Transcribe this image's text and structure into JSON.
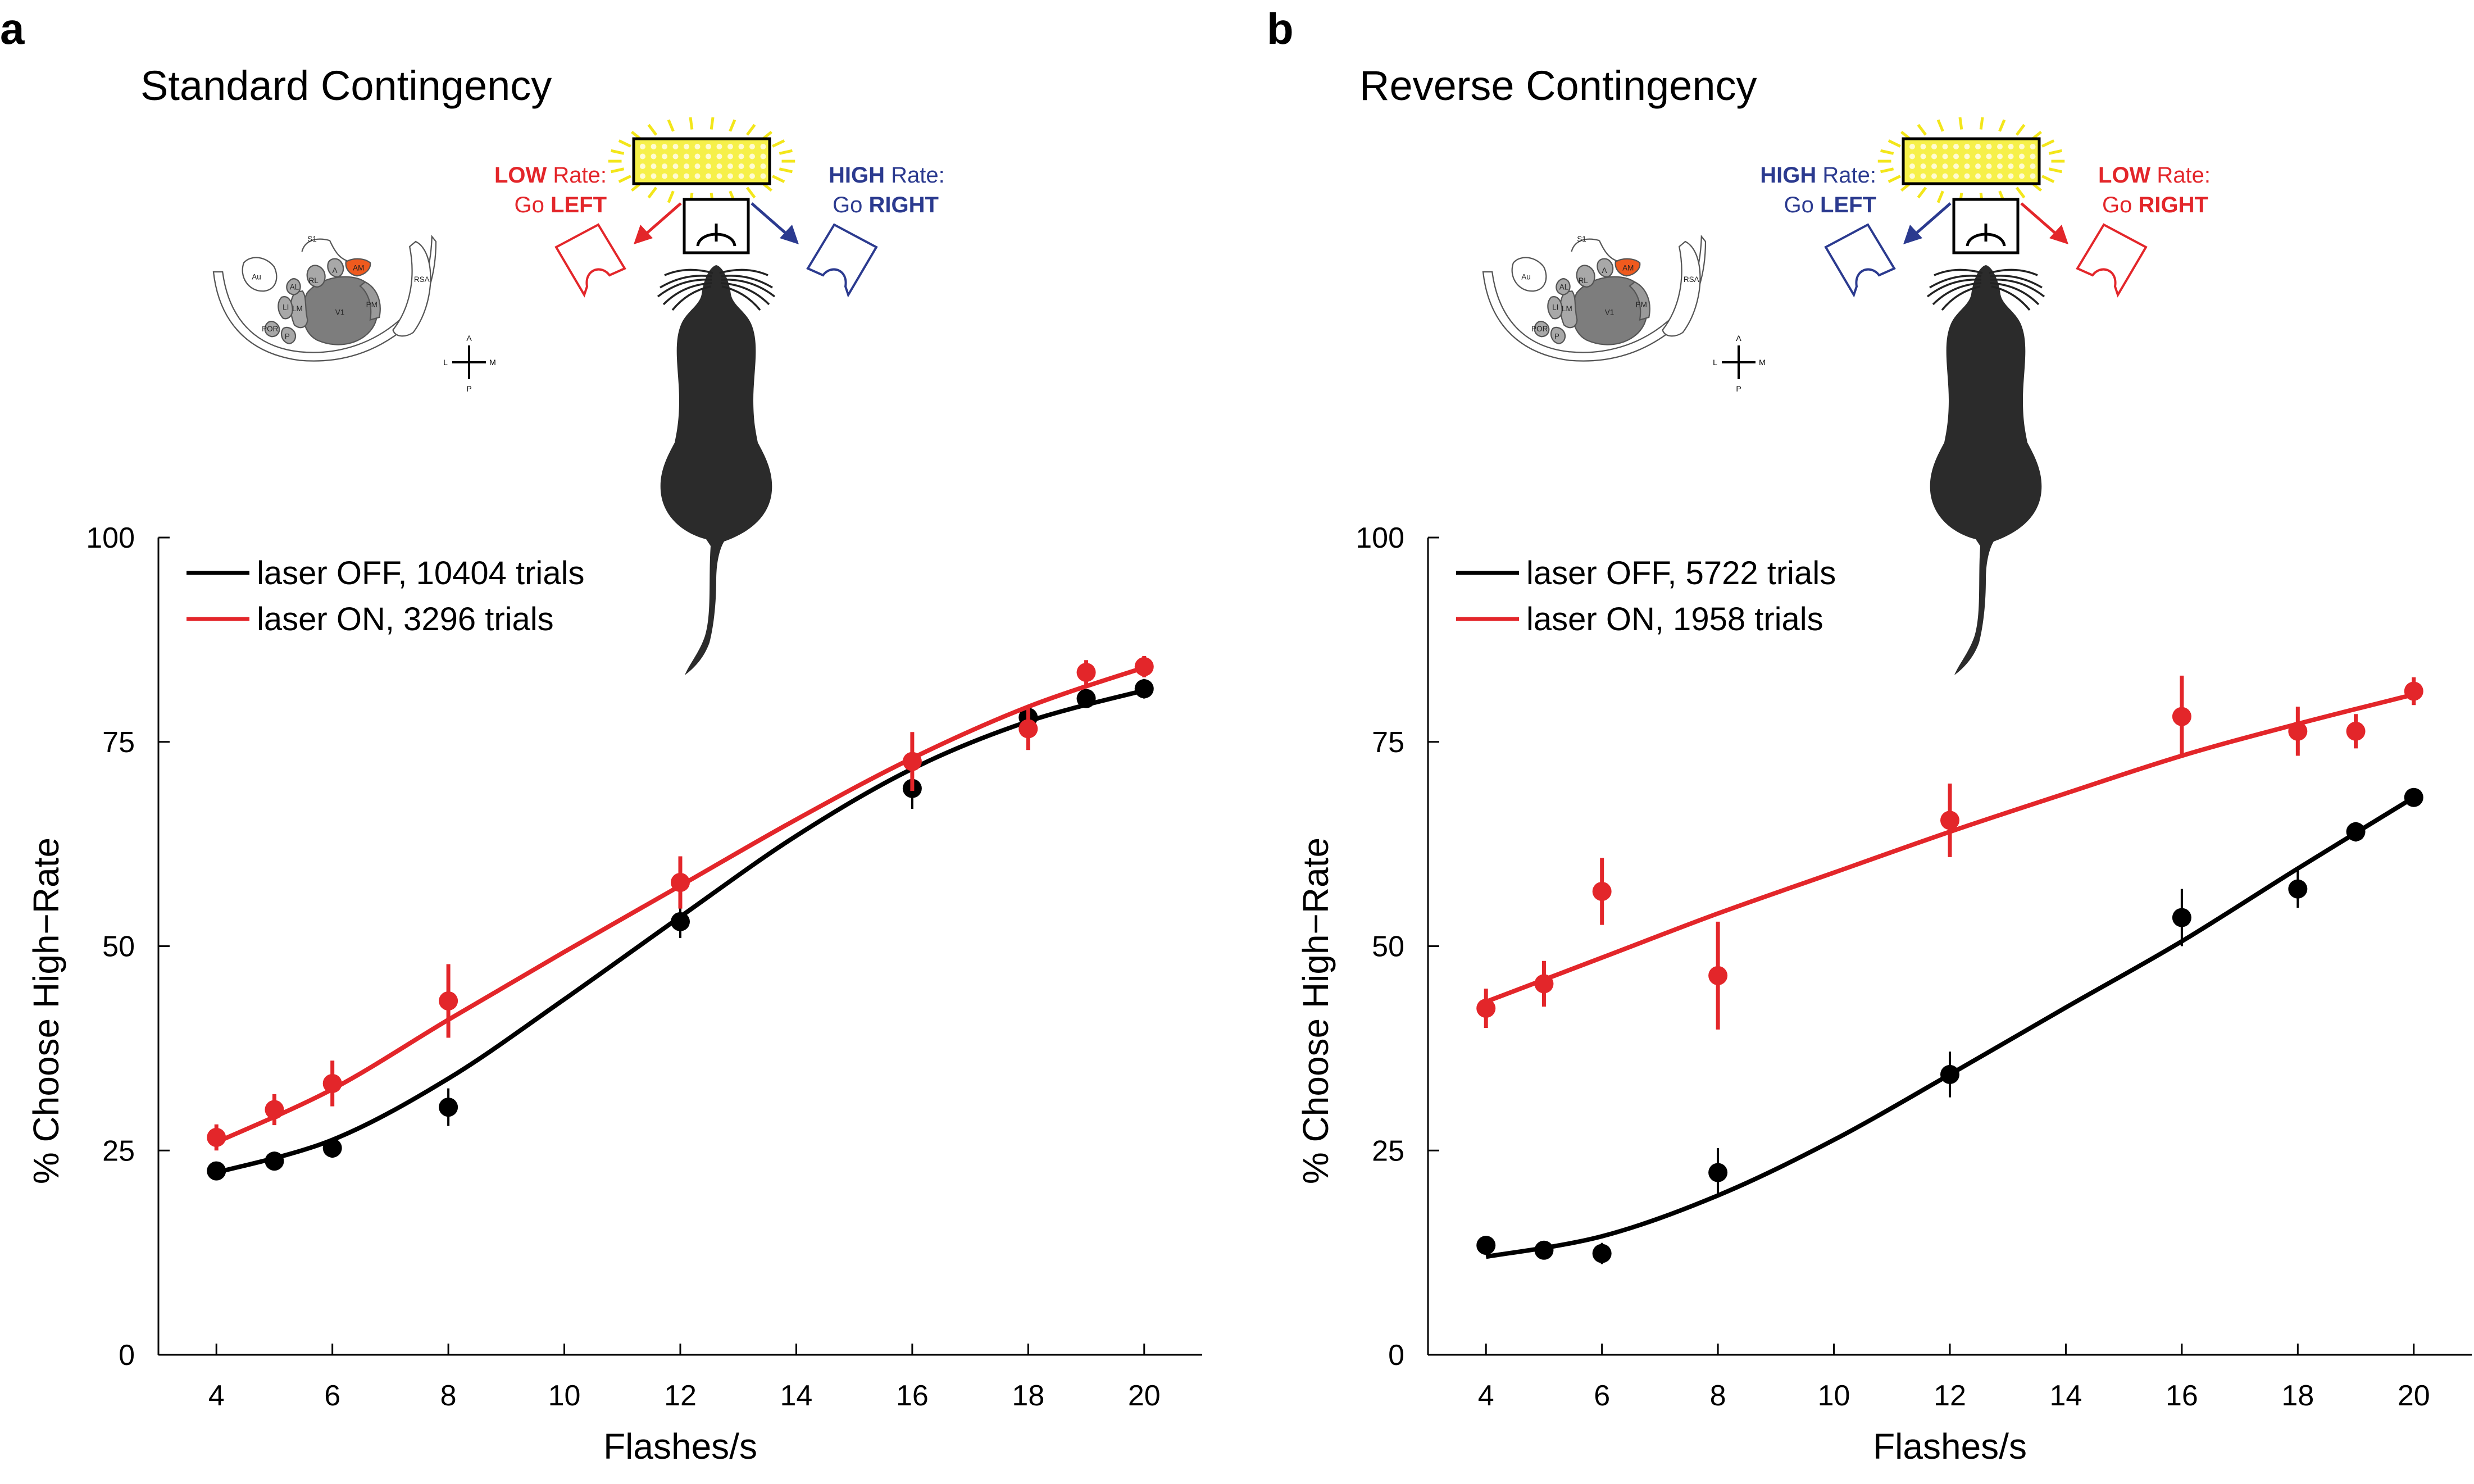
{
  "panels": [
    {
      "letter": "a",
      "title": "Standard Contingency",
      "diagram": {
        "left_label_bold": "LOW",
        "left_label_rest": " Rate:",
        "left_action_pre": "Go ",
        "left_action_bold": "LEFT",
        "left_color": "#e3262a",
        "right_label_bold": "HIGH",
        "right_label_rest": " Rate:",
        "right_action_pre": "Go ",
        "right_action_bold": "RIGHT",
        "right_color": "#2b3a8f"
      }
    },
    {
      "letter": "b",
      "title": "Reverse Contingency",
      "diagram": {
        "left_label_bold": "HIGH",
        "left_label_rest": " Rate:",
        "left_action_pre": "Go ",
        "left_action_bold": "LEFT",
        "left_color": "#2b3a8f",
        "right_label_bold": "LOW",
        "right_label_rest": " Rate:",
        "right_action_pre": "Go ",
        "right_action_bold": "RIGHT",
        "right_color": "#e3262a"
      }
    }
  ],
  "brain_labels": [
    "S1",
    "Au",
    "RL",
    "A",
    "AM",
    "AL",
    "LI",
    "LM",
    "V1",
    "PM",
    "RSA",
    "POR",
    "P"
  ],
  "compass_labels": {
    "a": "A",
    "p": "P",
    "l": "L",
    "m": "M"
  },
  "colors": {
    "laser_off": "#000000",
    "laser_on": "#e3262a",
    "am_area": "#ef5a1e",
    "led": "#f6f049",
    "glow": "#f3e61a"
  },
  "chart_data": [
    {
      "type": "scatter",
      "xlabel": "Flashes/s",
      "ylabel": "% Choose High−Rate",
      "xlim": [
        3,
        21
      ],
      "ylim": [
        0,
        100
      ],
      "xticks": [
        4,
        6,
        8,
        10,
        12,
        14,
        16,
        18,
        20
      ],
      "yticks": [
        0,
        25,
        50,
        75,
        100
      ],
      "legend_position": "top-left",
      "series": [
        {
          "name": "laser OFF, 10404 trials",
          "color": "#000000",
          "x": [
            4,
            5,
            6,
            8,
            12,
            16,
            18,
            19,
            20
          ],
          "y": [
            22.5,
            23.7,
            25.3,
            30.3,
            53.0,
            69.3,
            78.0,
            80.3,
            81.5
          ],
          "err": [
            1.0,
            1.0,
            1.2,
            2.3,
            2.0,
            2.5,
            1.3,
            1.0,
            1.2
          ],
          "fit": {
            "x": [
              4,
              6,
              8,
              10,
              12,
              14,
              16,
              18,
              20
            ],
            "y": [
              22.3,
              26.3,
              33.8,
              43.5,
              53.6,
              63.5,
              71.7,
              77.5,
              81.3
            ]
          }
        },
        {
          "name": "laser ON, 3296 trials",
          "color": "#e3262a",
          "x": [
            4,
            5,
            6,
            8,
            12,
            16,
            18,
            19,
            20
          ],
          "y": [
            26.6,
            30.0,
            33.2,
            43.3,
            57.8,
            72.6,
            76.6,
            83.5,
            84.2
          ],
          "err": [
            1.6,
            1.9,
            2.8,
            4.5,
            3.2,
            3.6,
            2.6,
            1.5,
            1.3
          ],
          "fit": {
            "x": [
              4,
              6,
              8,
              10,
              12,
              14,
              16,
              18,
              20
            ],
            "y": [
              26.0,
              32.5,
              41.0,
              49.3,
              57.4,
              65.5,
              73.0,
              79.3,
              84.1
            ]
          }
        }
      ]
    },
    {
      "type": "scatter",
      "xlabel": "Flashes/s",
      "ylabel": "% Choose High−Rate",
      "xlim": [
        3,
        21
      ],
      "ylim": [
        0,
        100
      ],
      "xticks": [
        4,
        6,
        8,
        10,
        12,
        14,
        16,
        18,
        20
      ],
      "yticks": [
        0,
        25,
        50,
        75,
        100
      ],
      "legend_position": "top-left",
      "series": [
        {
          "name": "laser OFF, 5722 trials",
          "color": "#000000",
          "x": [
            4,
            5,
            6,
            8,
            12,
            16,
            18,
            19,
            20
          ],
          "y": [
            13.4,
            12.8,
            12.4,
            22.3,
            34.3,
            53.5,
            57.0,
            64.0,
            68.2
          ],
          "err": [
            1.0,
            1.0,
            1.3,
            3.0,
            2.8,
            3.5,
            2.3,
            1.2,
            1.0
          ],
          "fit": {
            "x": [
              4,
              6,
              8,
              10,
              12,
              14,
              16,
              18,
              20
            ],
            "y": [
              12.0,
              14.5,
              19.5,
              26.3,
              34.3,
              42.5,
              50.6,
              59.5,
              68.2
            ]
          }
        },
        {
          "name": "laser ON, 1958 trials",
          "color": "#e3262a",
          "x": [
            4,
            5,
            6,
            8,
            12,
            16,
            18,
            19,
            20
          ],
          "y": [
            42.4,
            45.4,
            56.7,
            46.4,
            65.4,
            78.1,
            76.3,
            76.3,
            81.2
          ],
          "err": [
            2.4,
            2.8,
            4.1,
            6.6,
            4.5,
            5.0,
            3.0,
            2.1,
            1.7
          ],
          "fit": {
            "x": [
              4,
              6,
              8,
              10,
              12,
              14,
              16,
              18,
              20
            ],
            "y": [
              43.2,
              48.6,
              54.0,
              59.0,
              64.0,
              68.7,
              73.3,
              77.2,
              80.8
            ]
          }
        }
      ]
    }
  ]
}
